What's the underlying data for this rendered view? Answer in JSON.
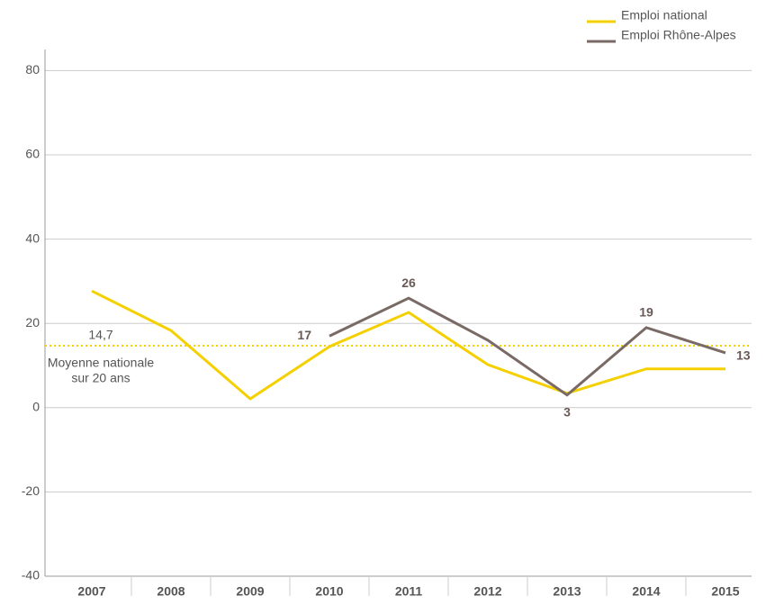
{
  "chart_data": {
    "type": "line",
    "categories": [
      "2007",
      "2008",
      "2009",
      "2010",
      "2011",
      "2012",
      "2013",
      "2014",
      "2015"
    ],
    "series": [
      {
        "name": "Emploi national",
        "color": "#f5d000",
        "values": [
          27.7,
          18.3,
          2.1,
          14.5,
          22.6,
          10.2,
          3.4,
          9.2,
          9.2
        ]
      },
      {
        "name": "Emploi Rhône-Alpes",
        "color": "#7a6a66",
        "values": [
          null,
          null,
          null,
          17,
          26,
          16,
          3,
          19,
          13
        ],
        "value_labels": [
          null,
          null,
          null,
          "17",
          "26",
          null,
          "3",
          "19",
          "13"
        ]
      }
    ],
    "reference_line": {
      "value": 14.7,
      "label": "14,7",
      "text": [
        "Moyenne nationale",
        "sur 20 ans"
      ],
      "color": "#f5d000"
    },
    "ylim": [
      -40,
      85
    ],
    "yticks": [
      -40,
      -20,
      0,
      20,
      40,
      60,
      80
    ],
    "grid": true,
    "legend": "top-right"
  }
}
